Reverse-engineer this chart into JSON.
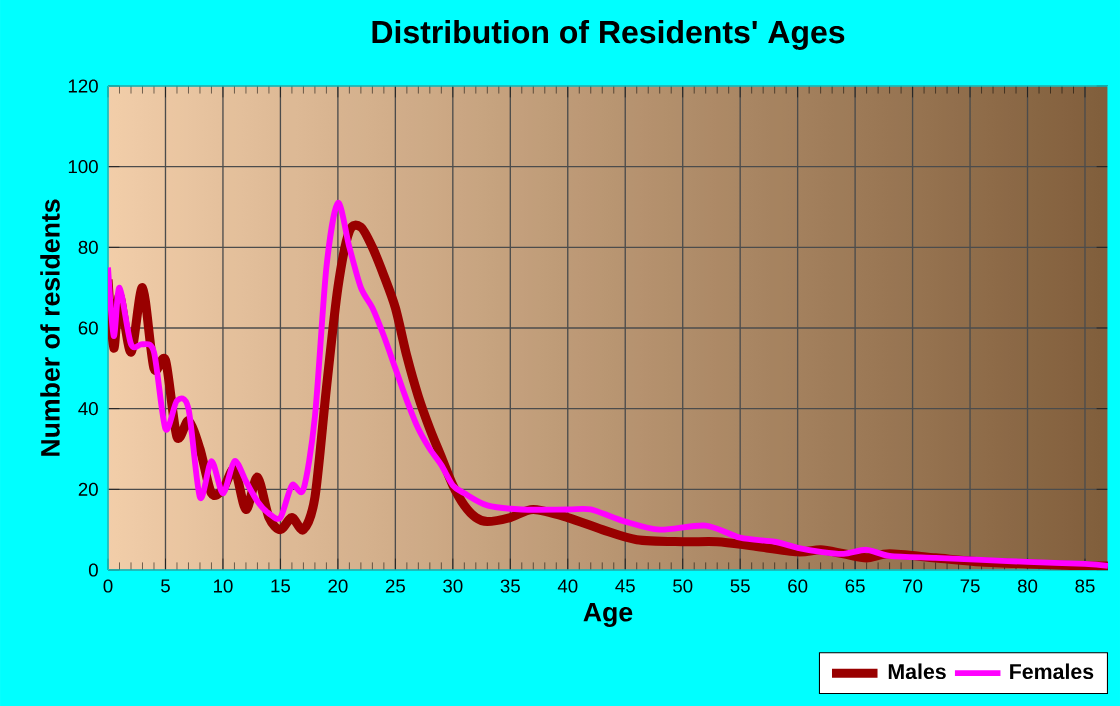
{
  "chart_data": {
    "type": "line",
    "title": "Distribution of Residents' Ages",
    "xlabel": "Age",
    "ylabel": "Number of residents",
    "xlim": [
      0,
      87
    ],
    "xticks": [
      0,
      5,
      10,
      15,
      20,
      25,
      30,
      35,
      40,
      45,
      50,
      55,
      60,
      65,
      70,
      75,
      80,
      85
    ],
    "ylim": [
      0,
      120
    ],
    "yticks": [
      0,
      20,
      40,
      60,
      80,
      100,
      120
    ],
    "grid": true,
    "legend": "bottom right",
    "marker": "none",
    "line_style": "solid",
    "series": [
      {
        "name": "Males",
        "color": "#990000",
        "x": [
          0,
          0.5,
          1,
          2,
          3,
          4,
          5,
          6,
          7,
          8,
          9,
          10,
          11,
          12,
          13,
          14,
          15,
          16,
          17,
          18,
          19,
          20,
          21,
          22,
          23,
          24,
          25,
          26,
          27,
          28,
          29,
          30,
          31,
          32,
          33,
          35,
          37,
          40,
          43,
          46,
          50,
          53,
          56,
          60,
          62,
          64,
          66,
          68,
          72,
          76,
          80,
          85,
          87
        ],
        "values": [
          72,
          55,
          68,
          54,
          70,
          50,
          52,
          33,
          37,
          30,
          19,
          20,
          25,
          15,
          23,
          13,
          10,
          13,
          10,
          18,
          45,
          70,
          84,
          85,
          80,
          73,
          65,
          53,
          43,
          35,
          28,
          21,
          16,
          13,
          12,
          13,
          15,
          13,
          10,
          7.5,
          7,
          7,
          6,
          4.5,
          5,
          4,
          3,
          4,
          3,
          2,
          1.5,
          1,
          1
        ]
      },
      {
        "name": "Females",
        "color": "#ff00ff",
        "x": [
          0,
          0.5,
          1,
          2,
          3,
          4,
          5,
          6,
          7,
          8,
          9,
          10,
          11,
          12,
          13,
          14,
          15,
          16,
          17,
          18,
          19,
          20,
          21,
          22,
          23,
          24,
          25,
          26,
          27,
          28,
          29,
          30,
          31,
          33,
          36,
          40,
          42,
          45,
          48,
          52,
          55,
          58,
          60,
          62,
          64,
          66,
          68,
          72,
          76,
          80,
          85,
          87
        ],
        "values": [
          75,
          58,
          70,
          56,
          56,
          54,
          35,
          42,
          40,
          18,
          27,
          19,
          27,
          22,
          17,
          14,
          13,
          21,
          20,
          38,
          75,
          91,
          80,
          70,
          65,
          58,
          50,
          42,
          35,
          30,
          26,
          21,
          19,
          16,
          15,
          15,
          15,
          12,
          10,
          11,
          8,
          7,
          5.5,
          4.5,
          4,
          5,
          3.5,
          3,
          2.5,
          2,
          1.5,
          1
        ]
      }
    ]
  }
}
